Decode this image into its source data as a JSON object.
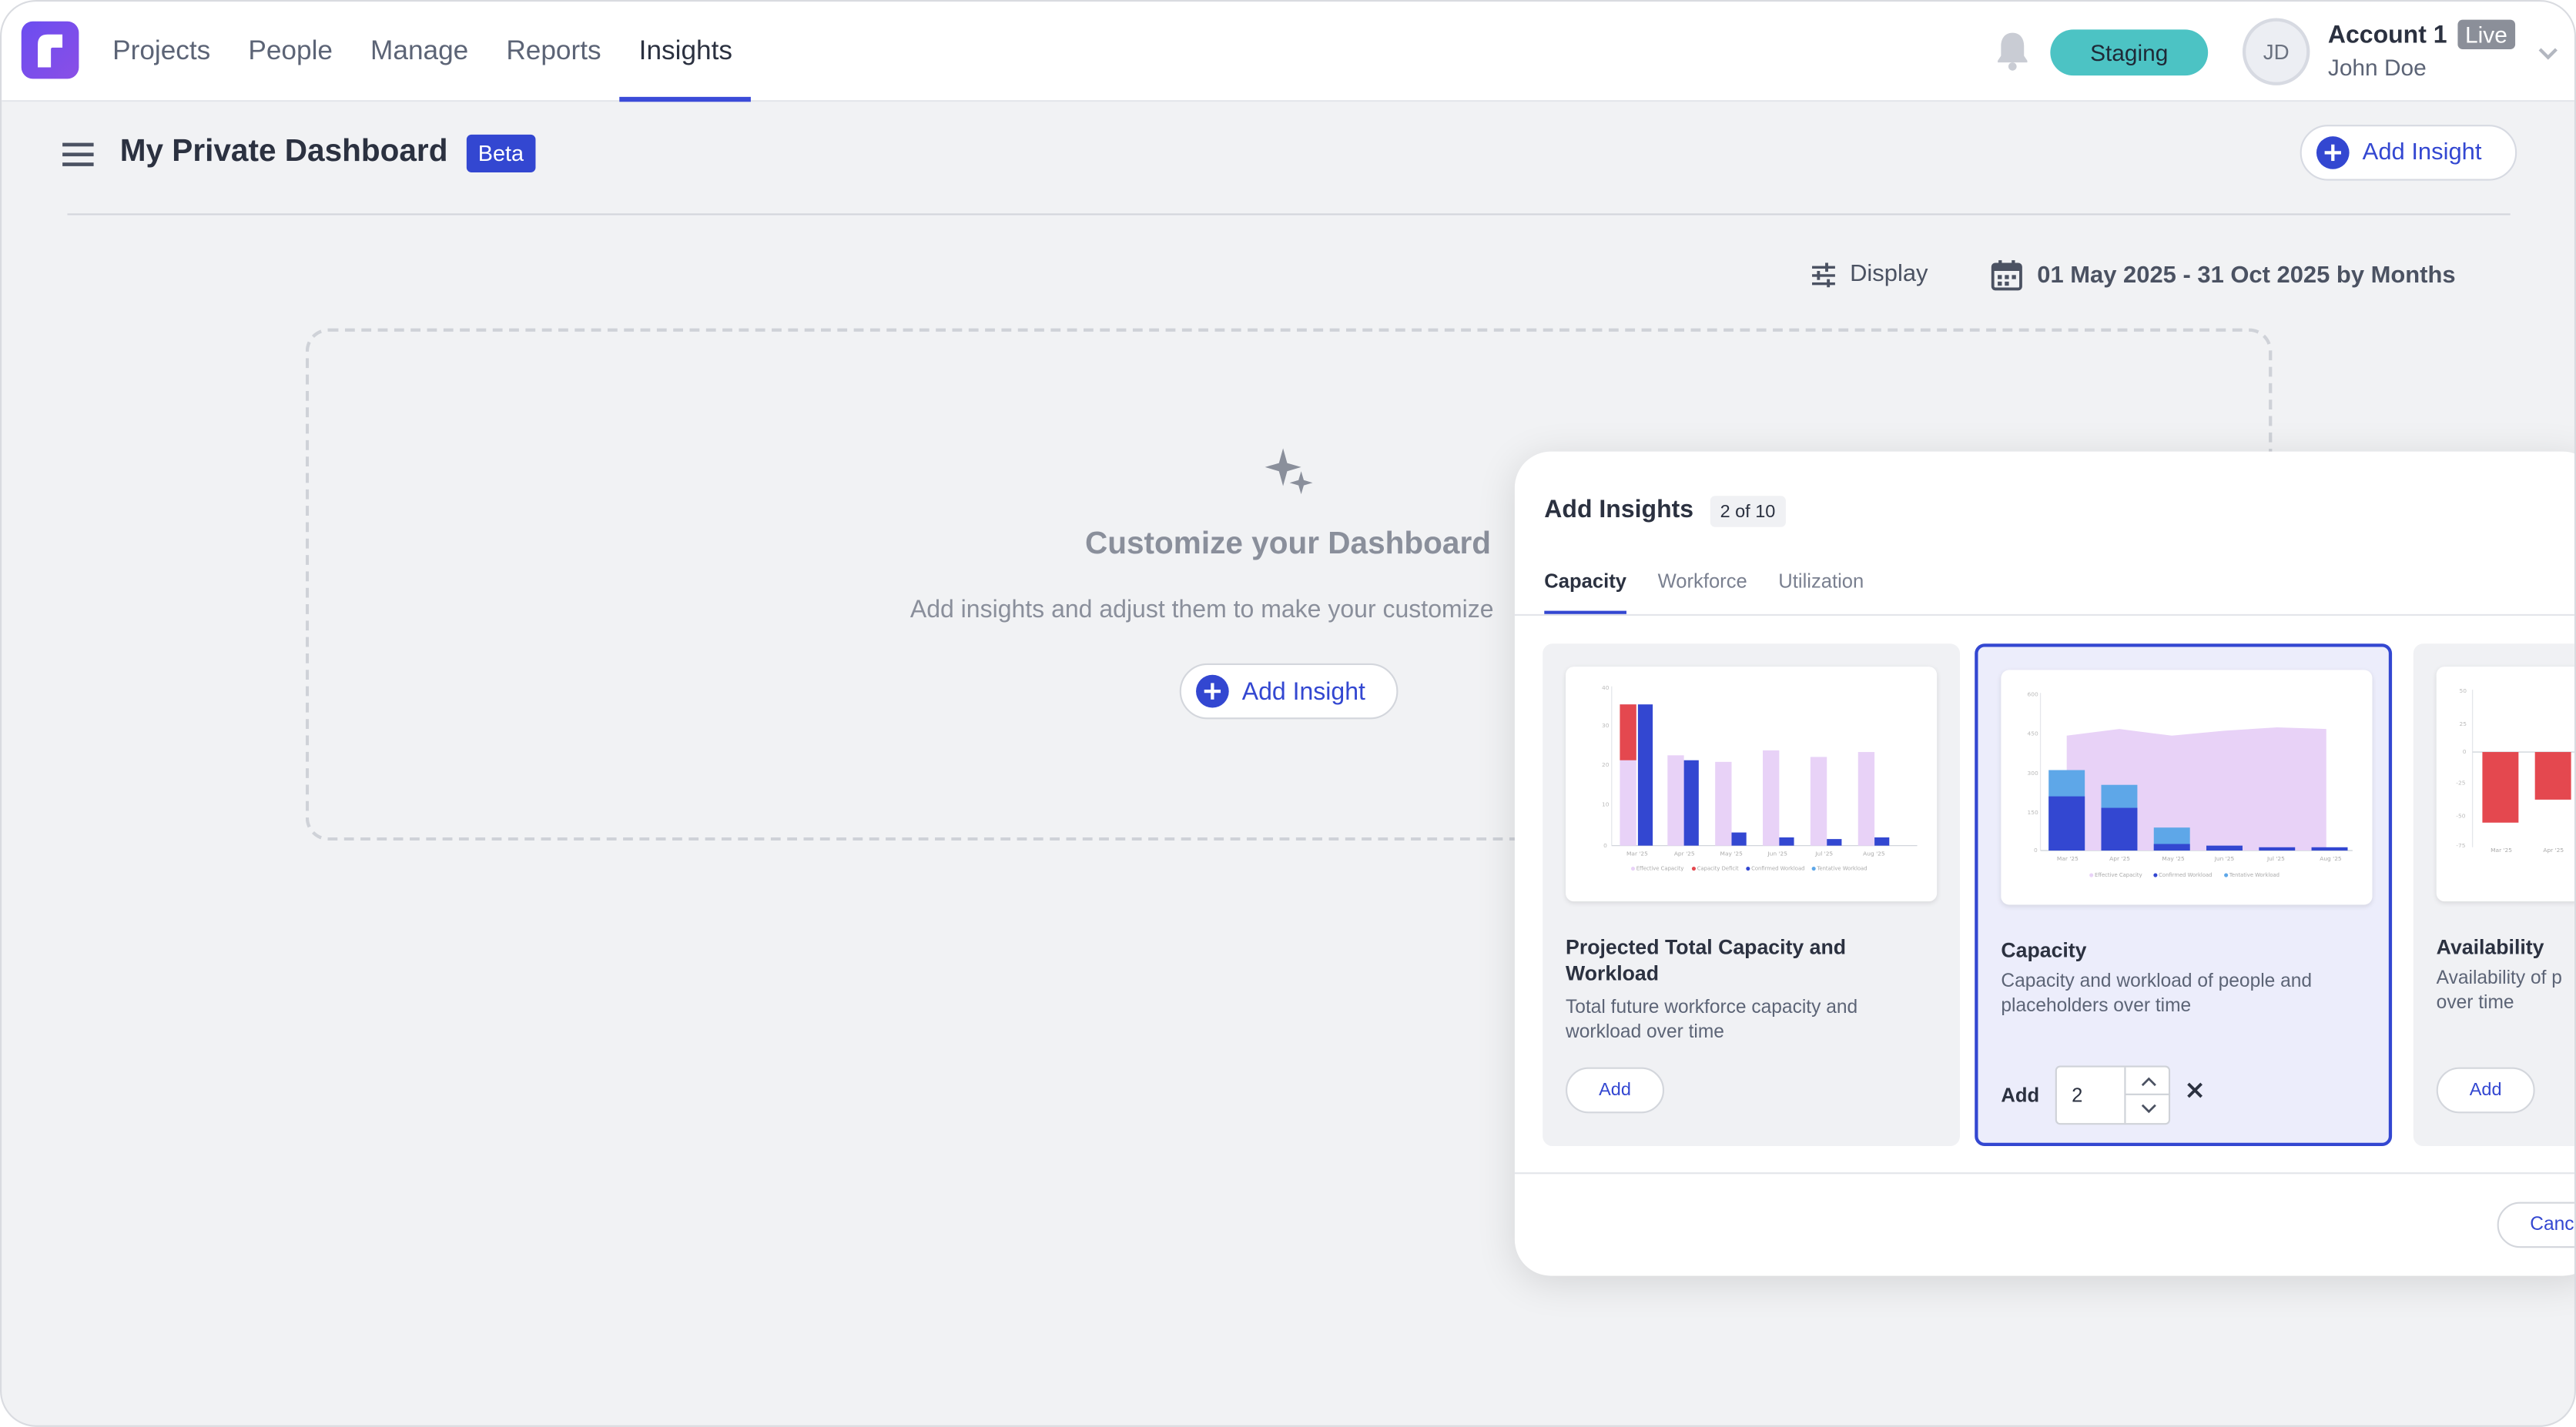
{
  "nav": {
    "items": [
      "Projects",
      "People",
      "Manage",
      "Reports",
      "Insights"
    ],
    "active": "Insights"
  },
  "env_badge": "Staging",
  "account": {
    "initials": "JD",
    "name": "Account 1",
    "mode": "Live",
    "user": "John Doe"
  },
  "header": {
    "title": "My Private Dashboard",
    "badge": "Beta",
    "add_insight": "Add Insight"
  },
  "toolbar": {
    "display": "Display",
    "date_range": "01 May 2025 - 31 Oct 2025 by Months"
  },
  "empty_state": {
    "title": "Customize your Dashboard",
    "subtitle": "Add insights and adjust them to make your customize",
    "button": "Add Insight"
  },
  "modal": {
    "title": "Add Insights",
    "count": "2 of 10",
    "tabs": [
      "Capacity",
      "Workforce",
      "Utilization"
    ],
    "active_tab": "Capacity",
    "cards": [
      {
        "title": "Projected Total Capacity and Workload",
        "desc": "Total future workforce capacity and workload over time",
        "action": "Add"
      },
      {
        "title": "Capacity",
        "desc": "Capacity and workload of people and placeholders over time",
        "action_label": "Add",
        "quantity": "2"
      },
      {
        "title": "Availability",
        "desc": "Availability of p over time",
        "action": "Add"
      }
    ],
    "cancel": "Cancel"
  },
  "colors": {
    "accent": "#3347d1",
    "staging": "#4cc3c4",
    "red": "#e4484f",
    "lavender": "#e8d2f7",
    "light_blue": "#5ea7e8"
  }
}
